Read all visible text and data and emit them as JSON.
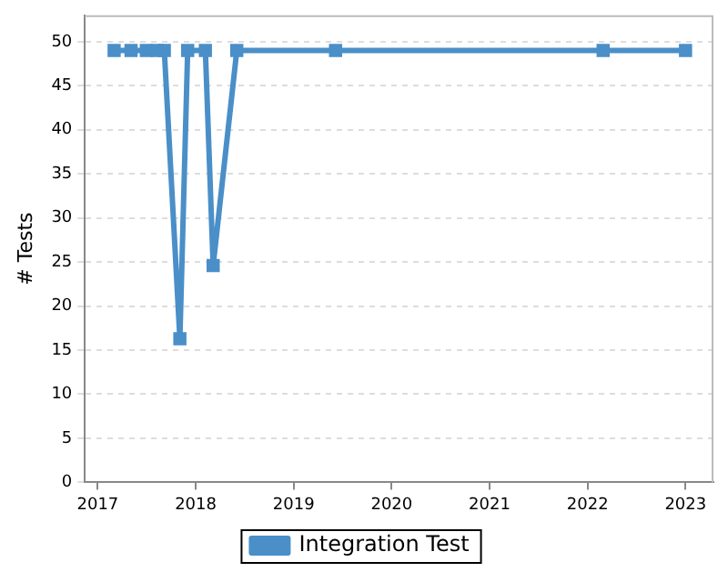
{
  "chart_data": {
    "type": "line",
    "ylabel": "# Tests",
    "x": [
      "2017-03-03",
      "2017-05-05",
      "2017-07-01",
      "2017-08-11",
      "2017-09-06",
      "2017-11-03",
      "2017-12-02",
      "2018-02-06",
      "2018-03-07",
      "2018-06-03",
      "2019-06-06",
      "2022-02-28",
      "2023-01-01"
    ],
    "series": [
      {
        "name": "Integration Test",
        "color": "#4a8fc8",
        "values": [
          49,
          49,
          49,
          49,
          49,
          16.3,
          49,
          49,
          24.6,
          49,
          49,
          49,
          49
        ]
      }
    ],
    "xlim": [
      "2016-11-14",
      "2023-04-15"
    ],
    "xticks": [
      "2017",
      "2018",
      "2019",
      "2020",
      "2021",
      "2022",
      "2023"
    ],
    "ylim": [
      0,
      53
    ],
    "yticks": [
      0,
      5,
      10,
      15,
      20,
      25,
      30,
      35,
      40,
      45,
      50
    ],
    "grid": "y",
    "legend": "bottom",
    "marker": "square",
    "line_style": "solid"
  }
}
